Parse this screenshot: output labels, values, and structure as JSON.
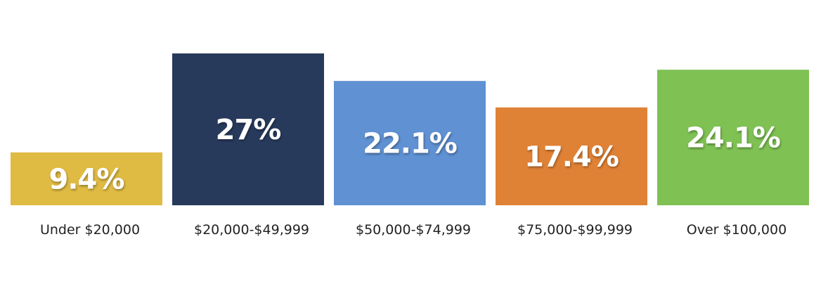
{
  "chart_data": {
    "type": "bar",
    "categories": [
      "Under $20,000",
      "$20,000-$49,999",
      "$50,000-$74,999",
      "$75,000-$99,999",
      "Over $100,000"
    ],
    "values": [
      9.4,
      27,
      22.1,
      17.4,
      24.1
    ],
    "data_labels": [
      "9.4%",
      "27%",
      "22.1%",
      "17.4%",
      "24.1%"
    ],
    "colors": [
      "#e0bb43",
      "#273a5c",
      "#5f91d3",
      "#e08236",
      "#7fc153"
    ],
    "grid": false,
    "legend": "none"
  }
}
